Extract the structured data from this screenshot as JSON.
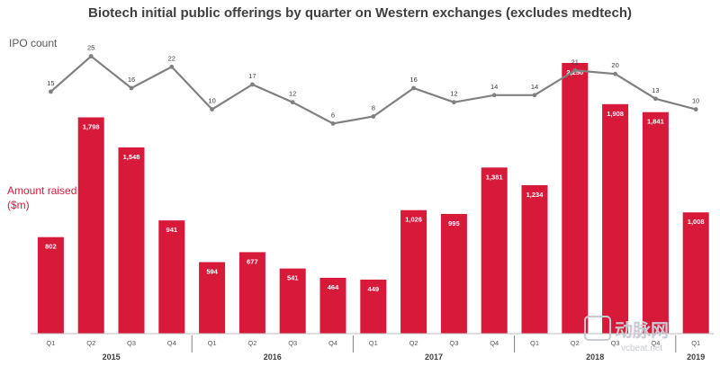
{
  "chart_data": {
    "type": "bar",
    "title": "Biotech initial public offerings by quarter on Western exchanges (excludes medtech)",
    "categories": [
      "Q1",
      "Q2",
      "Q3",
      "Q4",
      "Q1",
      "Q2",
      "Q3",
      "Q4",
      "Q1",
      "Q2",
      "Q3",
      "Q4",
      "Q1",
      "Q2",
      "Q3",
      "Q4",
      "Q1"
    ],
    "years": [
      {
        "label": "2015",
        "start": 0,
        "end": 3
      },
      {
        "label": "2016",
        "start": 4,
        "end": 7
      },
      {
        "label": "2017",
        "start": 8,
        "end": 11
      },
      {
        "label": "2018",
        "start": 12,
        "end": 15
      },
      {
        "label": "2019",
        "start": 16,
        "end": 16
      }
    ],
    "series": [
      {
        "name": "Amount raised ($m)",
        "kind": "bar",
        "values": [
          802,
          1798,
          1548,
          941,
          594,
          677,
          541,
          464,
          449,
          1026,
          995,
          1381,
          1234,
          2250,
          1908,
          1841,
          1008
        ],
        "labels": [
          "802",
          "1,798",
          "1,548",
          "941",
          "594",
          "677",
          "541",
          "464",
          "449",
          "1,026",
          "995",
          "1,381",
          "1,234",
          "2,250",
          "1,908",
          "1,841",
          "1,008"
        ]
      },
      {
        "name": "IPO count",
        "kind": "line",
        "values": [
          15,
          25,
          16,
          22,
          10,
          17,
          12,
          6,
          8,
          16,
          12,
          14,
          14,
          21,
          20,
          13,
          10
        ]
      }
    ],
    "legend_ipo": "IPO count",
    "legend_amount_line1": "Amount raised",
    "legend_amount_line2": "($m)",
    "ylim_bar": [
      0,
      2300
    ],
    "ylim_line": [
      0,
      25
    ],
    "colors": {
      "bar": "#d71a3a",
      "line": "#808080"
    }
  },
  "watermark": {
    "text": "动脉网",
    "sub": "vcbeat.net"
  }
}
